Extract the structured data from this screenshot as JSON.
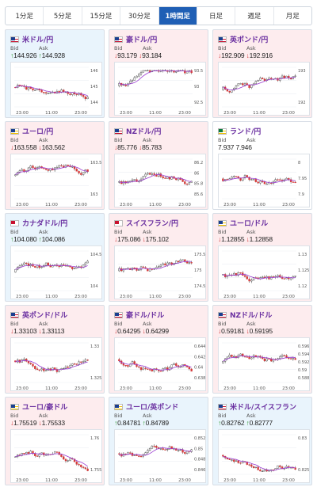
{
  "tabs": [
    {
      "label": "1分足",
      "active": false
    },
    {
      "label": "5分足",
      "active": false
    },
    {
      "label": "15分足",
      "active": false
    },
    {
      "label": "30分足",
      "active": false
    },
    {
      "label": "1時間足",
      "active": true
    },
    {
      "label": "日足",
      "active": false
    },
    {
      "label": "週足",
      "active": false
    },
    {
      "label": "月足",
      "active": false
    }
  ],
  "labels": {
    "bid": "Bid",
    "ask": "Ask"
  },
  "colors": {
    "up_candle": "#ffffff",
    "down_candle": "#d63a3a",
    "ma": "#9b3bd1",
    "tab_active": "#1f5fb5"
  },
  "cards": [
    {
      "pair": "米ドル/円",
      "dir": "up",
      "bid": "144.926",
      "ask": "144.928",
      "x_ticks": [
        "23:00",
        "11:00",
        "23:00"
      ],
      "y_ticks": [
        "146",
        "145",
        "144"
      ],
      "seed": 11
    },
    {
      "pair": "豪ドル/円",
      "dir": "down",
      "bid": "93.179",
      "ask": "93.184",
      "x_ticks": [
        "23:00",
        "11:00",
        "23:00"
      ],
      "y_ticks": [
        "93.5",
        "93",
        "92.5"
      ],
      "seed": 23
    },
    {
      "pair": "英ポンド/円",
      "dir": "down",
      "bid": "192.909",
      "ask": "192.916",
      "x_ticks": [
        "23:00",
        "11:00",
        "23:00"
      ],
      "y_ticks": [
        "193",
        "192"
      ],
      "seed": 37
    },
    {
      "pair": "ユーロ/円",
      "dir": "down",
      "bid": "163.558",
      "ask": "163.562",
      "x_ticks": [
        "23:00",
        "11:00",
        "23:00"
      ],
      "y_ticks": [
        "163.5",
        "163"
      ],
      "seed": 41
    },
    {
      "pair": "NZドル/円",
      "dir": "down",
      "bid": "85.776",
      "ask": "85.783",
      "x_ticks": [
        "23:00",
        "11:00",
        "23:00"
      ],
      "y_ticks": [
        "86.2",
        "86",
        "85.8",
        "85.6"
      ],
      "seed": 53
    },
    {
      "pair": "ランド/円",
      "dir": "flat",
      "bid": "7.937",
      "ask": "7.946",
      "x_ticks": [
        "23:00",
        "11:00",
        "23:00"
      ],
      "y_ticks": [
        "8",
        "7.95",
        "7.9"
      ],
      "seed": 61
    },
    {
      "pair": "カナダドル/円",
      "dir": "up",
      "bid": "104.080",
      "ask": "104.086",
      "x_ticks": [
        "23:00",
        "11:00",
        "23:00"
      ],
      "y_ticks": [
        "104.5",
        "104"
      ],
      "seed": 71
    },
    {
      "pair": "スイスフラン/円",
      "dir": "down",
      "bid": "175.086",
      "ask": "175.102",
      "x_ticks": [
        "23:00",
        "11:00",
        "23:00"
      ],
      "y_ticks": [
        "175.5",
        "175",
        "174.5"
      ],
      "seed": 83
    },
    {
      "pair": "ユーロ/ドル",
      "dir": "down",
      "bid": "1.12855",
      "ask": "1.12858",
      "x_ticks": [
        "23:00",
        "11:00",
        "23:00"
      ],
      "y_ticks": [
        "1.13",
        "1.125",
        "1.12"
      ],
      "seed": 97
    },
    {
      "pair": "英ポンド/ドル",
      "dir": "down",
      "bid": "1.33103",
      "ask": "1.33113",
      "x_ticks": [
        "23:00",
        "11:00",
        "23:00"
      ],
      "y_ticks": [
        "1.33",
        "1.325"
      ],
      "seed": 101
    },
    {
      "pair": "豪ドル/ドル",
      "dir": "down",
      "bid": "0.64295",
      "ask": "0.64299",
      "x_ticks": [
        "23:00",
        "11:00",
        "23:00"
      ],
      "y_ticks": [
        "0.644",
        "0.642",
        "0.64",
        "0.638"
      ],
      "seed": 113
    },
    {
      "pair": "NZドル/ドル",
      "dir": "down",
      "bid": "0.59181",
      "ask": "0.59195",
      "x_ticks": [
        "23:00",
        "11:00",
        "23:00"
      ],
      "y_ticks": [
        "0.596",
        "0.594",
        "0.592",
        "0.59",
        "0.588"
      ],
      "seed": 127
    },
    {
      "pair": "ユーロ/豪ドル",
      "dir": "down",
      "bid": "1.75519",
      "ask": "1.75533",
      "x_ticks": [
        "23:00",
        "11:00",
        "23:00"
      ],
      "y_ticks": [
        "1.76",
        "1.755"
      ],
      "seed": 131
    },
    {
      "pair": "ユーロ/英ポンド",
      "dir": "up",
      "bid": "0.84781",
      "ask": "0.84789",
      "x_ticks": [
        "23:00",
        "11:00",
        "23:00"
      ],
      "y_ticks": [
        "0.852",
        "0.85",
        "0.848",
        "0.846"
      ],
      "seed": 139
    },
    {
      "pair": "米ドル/スイスフラン",
      "dir": "up",
      "bid": "0.82762",
      "ask": "0.82777",
      "x_ticks": [
        "23:00",
        "11:00",
        "23:00"
      ],
      "y_ticks": [
        "0.83",
        "0.825"
      ],
      "seed": 149
    }
  ]
}
